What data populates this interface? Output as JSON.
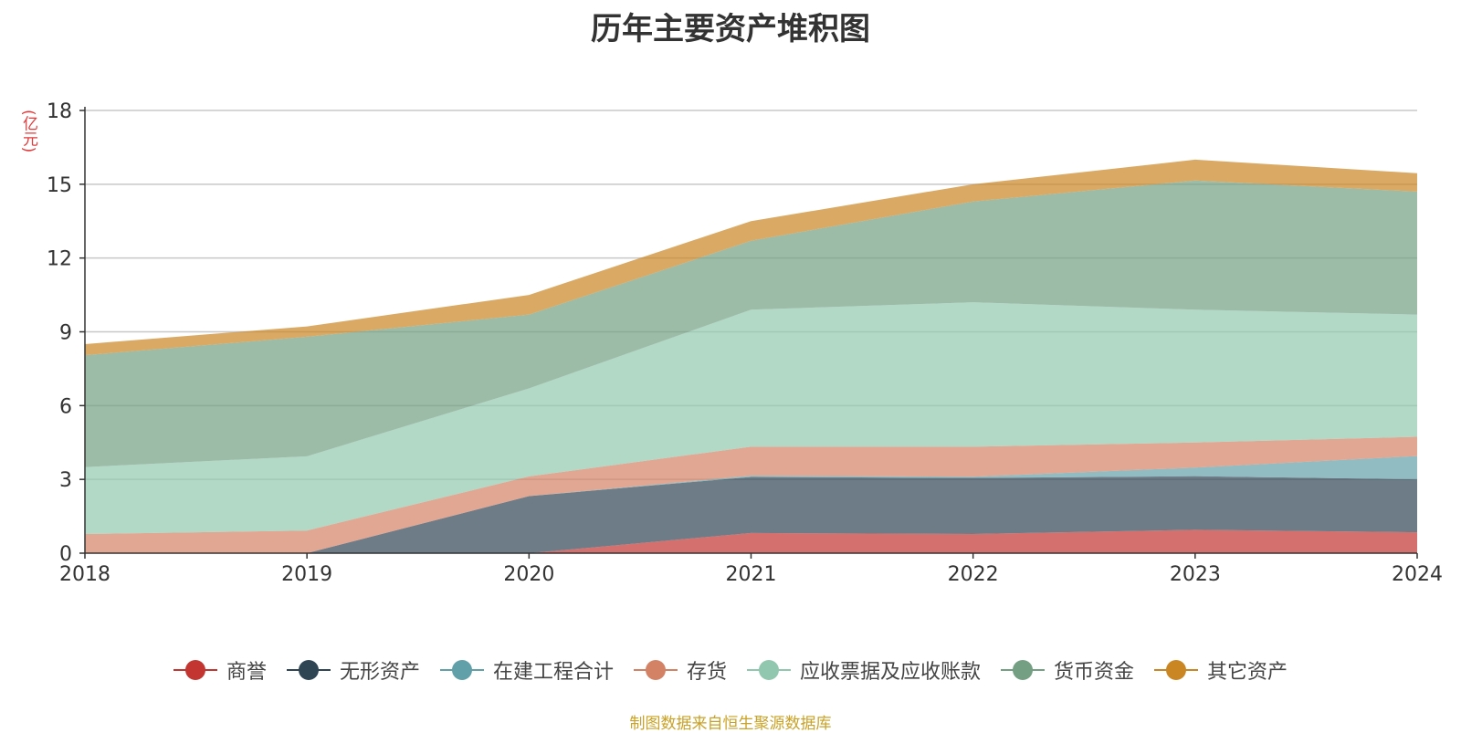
{
  "title": "历年主要资产堆积图",
  "unit": "(亿元)",
  "source": "制图数据来自恒生聚源数据库",
  "chart_data": {
    "type": "area",
    "stacked": true,
    "title": "历年主要资产堆积图",
    "ylabel": "(亿元)",
    "categories": [
      "2018",
      "2019",
      "2020",
      "2021",
      "2022",
      "2023",
      "2024"
    ],
    "ylim": [
      0,
      18
    ],
    "yticks": [
      0,
      3,
      6,
      9,
      12,
      15,
      18
    ],
    "grid": true,
    "legend_position": "bottom",
    "series": [
      {
        "name": "商誉",
        "color": "#c23531",
        "values": [
          0,
          0,
          0,
          0.82,
          0.78,
          0.95,
          0.85
        ]
      },
      {
        "name": "无形资产",
        "color": "#2f4554",
        "values": [
          0,
          0,
          2.32,
          2.28,
          2.28,
          2.18,
          2.15
        ]
      },
      {
        "name": "在建工程合计",
        "color": "#61a0a8",
        "values": [
          0,
          0,
          0,
          0.05,
          0.05,
          0.35,
          0.95
        ]
      },
      {
        "name": "存货",
        "color": "#d48265",
        "values": [
          0.78,
          0.92,
          0.8,
          1.18,
          1.22,
          1.02,
          0.78
        ]
      },
      {
        "name": "应收票据及应收账款",
        "color": "#91c7ae",
        "values": [
          2.72,
          3.02,
          3.58,
          5.57,
          5.87,
          5.4,
          4.97
        ]
      },
      {
        "name": "货币资金",
        "color": "#749f83",
        "values": [
          4.55,
          4.86,
          3.0,
          2.8,
          4.1,
          5.25,
          5.0
        ]
      },
      {
        "name": "其它资产",
        "color": "#ca8622",
        "values": [
          0.45,
          0.42,
          0.8,
          0.8,
          0.7,
          0.85,
          0.75
        ]
      }
    ]
  }
}
